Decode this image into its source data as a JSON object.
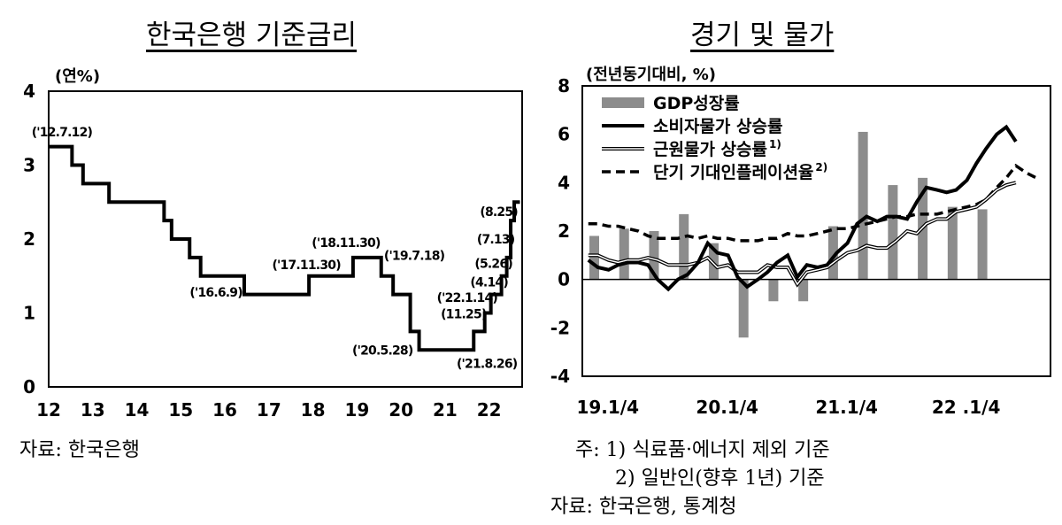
{
  "left": {
    "title": "한국은행 기준금리",
    "source": "자료: 한국은행",
    "chart_data": {
      "type": "line",
      "ylabel": "(연%)",
      "xlim": [
        2012,
        2022.75
      ],
      "ylim": [
        0,
        4
      ],
      "y_ticks": [
        "0",
        "1",
        "2",
        "3",
        "4"
      ],
      "x_ticks": [
        {
          "x": 2012,
          "label": "12"
        },
        {
          "x": 2013,
          "label": "13"
        },
        {
          "x": 2014,
          "label": "14"
        },
        {
          "x": 2015,
          "label": "15"
        },
        {
          "x": 2016,
          "label": "16"
        },
        {
          "x": 2017,
          "label": "17"
        },
        {
          "x": 2018,
          "label": "18"
        },
        {
          "x": 2019,
          "label": "19"
        },
        {
          "x": 2020,
          "label": "20"
        },
        {
          "x": 2021,
          "label": "21"
        },
        {
          "x": 2022,
          "label": "22"
        }
      ],
      "steps": [
        [
          2012.0,
          3.25
        ],
        [
          2012.53,
          3.0
        ],
        [
          2012.78,
          2.75
        ],
        [
          2013.37,
          2.5
        ],
        [
          2014.62,
          2.25
        ],
        [
          2014.79,
          2.0
        ],
        [
          2015.2,
          1.75
        ],
        [
          2015.45,
          1.5
        ],
        [
          2016.44,
          1.25
        ],
        [
          2017.91,
          1.5
        ],
        [
          2018.91,
          1.75
        ],
        [
          2019.55,
          1.5
        ],
        [
          2019.82,
          1.25
        ],
        [
          2020.21,
          0.75
        ],
        [
          2020.41,
          0.5
        ],
        [
          2021.65,
          0.75
        ],
        [
          2021.9,
          1.0
        ],
        [
          2022.04,
          1.25
        ],
        [
          2022.28,
          1.5
        ],
        [
          2022.4,
          1.75
        ],
        [
          2022.49,
          2.25
        ],
        [
          2022.57,
          2.5
        ],
        [
          2022.7,
          2.5
        ]
      ],
      "annotations": [
        {
          "text": "('12.7.12)",
          "x": 2012.3,
          "y": 3.45
        },
        {
          "text": "('16.6.9)",
          "x": 2015.8,
          "y": 1.28
        },
        {
          "text": "('17.11.30)",
          "x": 2017.85,
          "y": 1.65
        },
        {
          "text": "('18.11.30)",
          "x": 2018.75,
          "y": 1.95
        },
        {
          "text": "('19.7.18)",
          "x": 2020.3,
          "y": 1.78
        },
        {
          "text": "('20.5.28)",
          "x": 2019.58,
          "y": 0.5
        },
        {
          "text": "('21.8.26)",
          "x": 2021.95,
          "y": 0.32
        },
        {
          "text": "(11.25)",
          "x": 2021.42,
          "y": 0.99
        },
        {
          "text": "('22.1.14)",
          "x": 2021.5,
          "y": 1.21
        },
        {
          "text": "(4.14)",
          "x": 2022.0,
          "y": 1.42
        },
        {
          "text": "(5.26)",
          "x": 2022.1,
          "y": 1.67
        },
        {
          "text": "(7.13)",
          "x": 2022.15,
          "y": 2.0
        },
        {
          "text": "(8.25)",
          "x": 2022.22,
          "y": 2.37
        }
      ]
    }
  },
  "right": {
    "title": "경기 및 물가",
    "notes": [
      "주: 1) 식료품·에너지 제외 기준",
      "2) 일반인(향후 1년) 기준"
    ],
    "source": "자료: 한국은행, 통계청",
    "chart_data": {
      "type": "bar+line",
      "ylabel": "(전년동기대비, %)",
      "ylim": [
        -4,
        8
      ],
      "y_ticks": [
        "-4",
        "-2",
        "0",
        "2",
        "4",
        "6",
        "8"
      ],
      "xlim": [
        2018.95,
        2022.87
      ],
      "x_ticks": [
        {
          "x": 2019.0,
          "label": "19.1/4"
        },
        {
          "x": 2020.0,
          "label": "20.1/4"
        },
        {
          "x": 2021.0,
          "label": "21.1/4"
        },
        {
          "x": 2022.0,
          "label": "22 .1/4"
        }
      ],
      "legend": [
        {
          "label": "GDP성장률",
          "sup": "",
          "style": "bar"
        },
        {
          "label": "소비자물가 상승률",
          "sup": "",
          "style": "solid"
        },
        {
          "label": "근원물가 상승률",
          "sup": "1)",
          "style": "double"
        },
        {
          "label": "단기 기대인플레이션율",
          "sup": "2)",
          "style": "dashed"
        }
      ],
      "gdp": {
        "x": [
          2019.05,
          2019.3,
          2019.55,
          2019.8,
          2020.05,
          2020.3,
          2020.55,
          2020.8,
          2021.05,
          2021.3,
          2021.55,
          2021.8,
          2022.05,
          2022.3
        ],
        "values": [
          1.8,
          2.1,
          2.0,
          2.7,
          1.5,
          -2.4,
          -0.9,
          -0.9,
          2.2,
          6.1,
          3.9,
          4.2,
          3.0,
          2.9
        ]
      },
      "cpi": {
        "x": [
          2019.0,
          2019.08,
          2019.17,
          2019.25,
          2019.33,
          2019.42,
          2019.5,
          2019.58,
          2019.67,
          2019.75,
          2019.83,
          2019.92,
          2020.0,
          2020.08,
          2020.17,
          2020.25,
          2020.33,
          2020.42,
          2020.5,
          2020.58,
          2020.67,
          2020.75,
          2020.83,
          2020.92,
          2021.0,
          2021.08,
          2021.17,
          2021.25,
          2021.33,
          2021.42,
          2021.5,
          2021.58,
          2021.67,
          2021.75,
          2021.83,
          2021.92,
          2022.0,
          2022.08,
          2022.17,
          2022.25,
          2022.33,
          2022.42,
          2022.5,
          2022.58
        ],
        "values": [
          0.8,
          0.5,
          0.4,
          0.6,
          0.7,
          0.7,
          0.6,
          0.0,
          -0.4,
          0.0,
          0.2,
          0.7,
          1.5,
          1.1,
          1.0,
          0.1,
          -0.3,
          0.0,
          0.3,
          0.7,
          1.0,
          0.1,
          0.6,
          0.5,
          0.6,
          1.1,
          1.5,
          2.3,
          2.6,
          2.4,
          2.6,
          2.6,
          2.5,
          3.2,
          3.8,
          3.7,
          3.6,
          3.7,
          4.1,
          4.8,
          5.4,
          6.0,
          6.3,
          5.7
        ]
      },
      "core": {
        "x": [
          2019.0,
          2019.08,
          2019.17,
          2019.25,
          2019.33,
          2019.42,
          2019.5,
          2019.58,
          2019.67,
          2019.75,
          2019.83,
          2019.92,
          2020.0,
          2020.08,
          2020.17,
          2020.25,
          2020.33,
          2020.42,
          2020.5,
          2020.58,
          2020.67,
          2020.75,
          2020.83,
          2020.92,
          2021.0,
          2021.08,
          2021.17,
          2021.25,
          2021.33,
          2021.42,
          2021.5,
          2021.58,
          2021.67,
          2021.75,
          2021.83,
          2021.92,
          2022.0,
          2022.08,
          2022.17,
          2022.25,
          2022.33,
          2022.42,
          2022.5,
          2022.58
        ],
        "values": [
          1.0,
          1.0,
          0.8,
          0.7,
          0.8,
          0.8,
          0.9,
          0.8,
          0.6,
          0.6,
          0.6,
          0.7,
          0.9,
          0.5,
          0.6,
          0.3,
          0.3,
          0.3,
          0.6,
          0.5,
          0.5,
          -0.2,
          0.3,
          0.4,
          0.5,
          0.8,
          1.1,
          1.2,
          1.4,
          1.3,
          1.3,
          1.6,
          2.0,
          1.9,
          2.3,
          2.5,
          2.5,
          2.8,
          2.9,
          3.0,
          3.3,
          3.7,
          3.9,
          4.0
        ]
      },
      "expected": {
        "x": [
          2019.0,
          2019.08,
          2019.17,
          2019.25,
          2019.33,
          2019.42,
          2019.5,
          2019.58,
          2019.67,
          2019.75,
          2019.83,
          2019.92,
          2020.0,
          2020.08,
          2020.17,
          2020.25,
          2020.33,
          2020.42,
          2020.5,
          2020.58,
          2020.67,
          2020.75,
          2020.83,
          2020.92,
          2021.0,
          2021.08,
          2021.17,
          2021.25,
          2021.33,
          2021.42,
          2021.5,
          2021.58,
          2021.67,
          2021.75,
          2021.83,
          2021.92,
          2022.0,
          2022.08,
          2022.17,
          2022.25,
          2022.33,
          2022.42,
          2022.5,
          2022.58,
          2022.67,
          2022.75
        ],
        "values": [
          2.3,
          2.3,
          2.2,
          2.2,
          2.1,
          2.0,
          1.8,
          1.7,
          1.7,
          1.7,
          1.8,
          1.7,
          1.8,
          1.7,
          1.7,
          1.6,
          1.6,
          1.6,
          1.7,
          1.7,
          1.9,
          1.8,
          1.8,
          1.9,
          2.0,
          2.1,
          2.1,
          2.2,
          2.3,
          2.4,
          2.5,
          2.6,
          2.6,
          2.7,
          2.7,
          2.7,
          2.8,
          2.9,
          3.0,
          3.1,
          3.3,
          3.8,
          4.2,
          4.7,
          4.4,
          4.2
        ]
      }
    }
  }
}
